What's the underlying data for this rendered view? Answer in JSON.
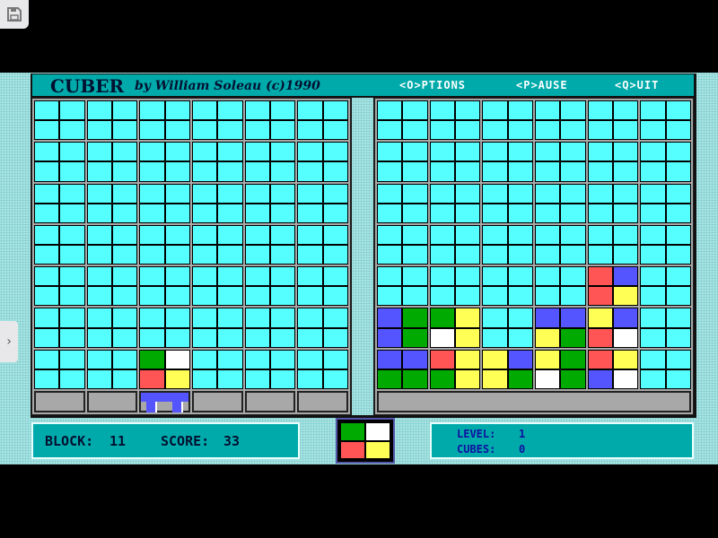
{
  "title": {
    "name": "CUBER",
    "byline": "by William Soleau (c)1990",
    "menu": [
      "<O>PTIONS",
      "<P>AUSE",
      "<Q>UIT"
    ]
  },
  "colors": {
    "c": "#55ffff",
    "r": "#ff5555",
    "b": "#5555ff",
    "y": "#ffff55",
    "g": "#00aa00",
    "w": "#ffffff",
    "teal": "#00aaaa",
    "grey": "#aaaaaa"
  },
  "left_board": [
    [
      "cccc",
      "cccc",
      "cccc",
      "cccc",
      "cccc",
      "cccc"
    ],
    [
      "cccc",
      "cccc",
      "cccc",
      "cccc",
      "cccc",
      "cccc"
    ],
    [
      "cccc",
      "cccc",
      "cccc",
      "cccc",
      "cccc",
      "cccc"
    ],
    [
      "cccc",
      "cccc",
      "cccc",
      "cccc",
      "cccc",
      "cccc"
    ],
    [
      "cccc",
      "cccc",
      "cccc",
      "cccc",
      "cccc",
      "cccc"
    ],
    [
      "cccc",
      "cccc",
      "cccc",
      "cccc",
      "cccc",
      "cccc"
    ],
    [
      "cccc",
      "cccc",
      "gwry",
      "cccc",
      "cccc",
      "cccc"
    ]
  ],
  "cursor_column": 3,
  "right_board": [
    [
      "cccc",
      "cccc",
      "cccc",
      "cccc",
      "cccc",
      "cccc"
    ],
    [
      "cccc",
      "cccc",
      "cccc",
      "cccc",
      "cccc",
      "cccc"
    ],
    [
      "cccc",
      "cccc",
      "cccc",
      "cccc",
      "cccc",
      "cccc"
    ],
    [
      "cccc",
      "cccc",
      "cccc",
      "cccc",
      "cccc",
      "cccc"
    ],
    [
      "cccc",
      "cccc",
      "cccc",
      "cccc",
      "rbry",
      "cccc"
    ],
    [
      "bgbg",
      "gywy",
      "cccc",
      "bbyg",
      "ybrw",
      "cccc"
    ],
    [
      "bbgg",
      "rygy",
      "ybyg",
      "ygwg",
      "rybw",
      "cccc"
    ]
  ],
  "next_cube": "gwry",
  "status": {
    "block_label": "BLOCK:",
    "block": "11",
    "score_label": "SCORE:",
    "score": "33",
    "level_label": "LEVEL:",
    "level": "1",
    "cubes_label": "CUBES:",
    "cubes": "0"
  }
}
